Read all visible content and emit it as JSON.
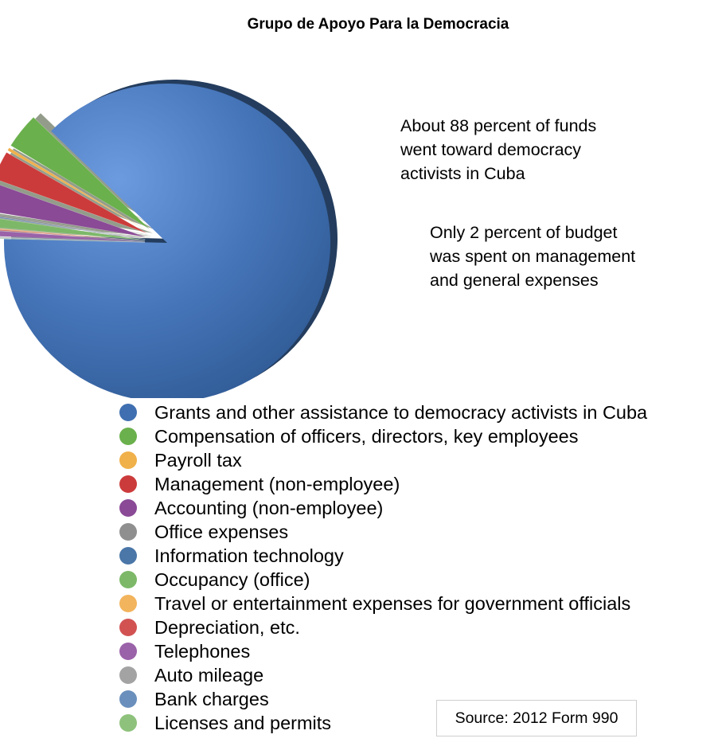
{
  "chart_data": {
    "type": "pie",
    "title": "Grupo de Apoyo Para la Democracia",
    "slices": [
      {
        "label": "Grants and other assistance to democracy activists in Cuba",
        "value": 88.0,
        "color": "#3f6fb0",
        "exploded": false
      },
      {
        "label": "Compensation of officers, directors, key employees",
        "value": 3.6,
        "color": "#6ab04c",
        "exploded": true
      },
      {
        "label": "Payroll tax",
        "value": 0.3,
        "color": "#f0b04a",
        "exploded": true
      },
      {
        "label": "Management (non-employee)",
        "value": 2.9,
        "color": "#cc3b3b",
        "exploded": true
      },
      {
        "label": "Accounting (non-employee)",
        "value": 2.9,
        "color": "#8a4a96",
        "exploded": true
      },
      {
        "label": "Office expenses",
        "value": 0.2,
        "color": "#8f8f8f",
        "exploded": true
      },
      {
        "label": "Information technology",
        "value": 0.1,
        "color": "#4a76a8",
        "exploded": true
      },
      {
        "label": "Occupancy (office)",
        "value": 1.0,
        "color": "#7cb868",
        "exploded": true
      },
      {
        "label": "Travel or entertainment expenses for government officials",
        "value": 0.1,
        "color": "#f2b45c",
        "exploded": true
      },
      {
        "label": "Depreciation, etc.",
        "value": 0.1,
        "color": "#d25252",
        "exploded": true
      },
      {
        "label": "Telephones",
        "value": 0.6,
        "color": "#9a62a8",
        "exploded": true
      },
      {
        "label": "Auto mileage",
        "value": 0.1,
        "color": "#a3a3a3",
        "exploded": true
      },
      {
        "label": "Bank charges",
        "value": 0.05,
        "color": "#6a8fbc",
        "exploded": true
      },
      {
        "label": "Licenses and permits",
        "value": 0.05,
        "color": "#8ec27c",
        "exploded": true
      }
    ],
    "legend_position": "bottom",
    "annotations": [
      {
        "text_lines": [
          "About 88 percent of funds",
          "went toward democracy",
          "activists in Cuba"
        ]
      },
      {
        "text_lines": [
          "Only 2 percent of budget",
          "was spent on management",
          "and general expenses"
        ]
      }
    ],
    "source": "Source: 2012 Form 990"
  }
}
